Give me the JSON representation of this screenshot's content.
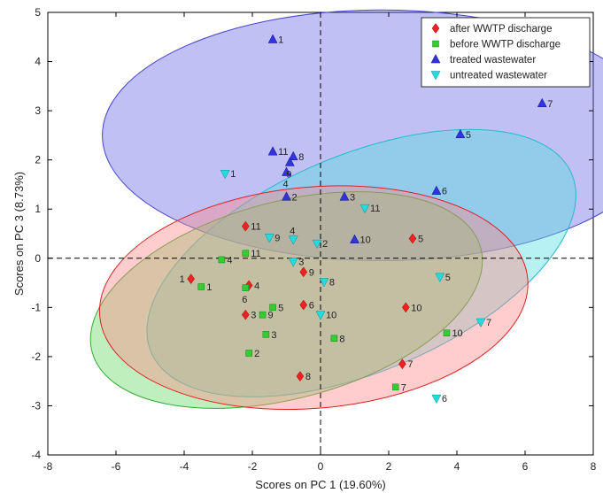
{
  "chart_data": {
    "type": "scatter",
    "xlabel": "Scores on PC 1 (19.60%)",
    "ylabel": "Scores on PC 3 (8.73%)",
    "xlim": [
      -8,
      8
    ],
    "ylim": [
      -4,
      5
    ],
    "xticks": [
      -8,
      -6,
      -4,
      -2,
      0,
      2,
      4,
      6,
      8
    ],
    "yticks": [
      -4,
      -3,
      -2,
      -1,
      0,
      1,
      2,
      3,
      4,
      5
    ],
    "reference_lines": {
      "x": 0,
      "y": 0,
      "style": "dashed"
    },
    "legend_position": "top-right",
    "series": [
      {
        "name": "after WWTP discharge",
        "marker": "diamond",
        "color": "#ee2222",
        "points": [
          {
            "x": -3.8,
            "y": -0.42,
            "label": "1",
            "lp": "left"
          },
          {
            "x": -2.2,
            "y": -1.15,
            "label": "3",
            "lp": "right"
          },
          {
            "x": -2.1,
            "y": -0.55,
            "label": "4",
            "lp": "right"
          },
          {
            "x": 2.7,
            "y": 0.4,
            "label": "5",
            "lp": "right"
          },
          {
            "x": -0.5,
            "y": -0.95,
            "label": "6",
            "lp": "right"
          },
          {
            "x": 2.4,
            "y": -2.15,
            "label": "7",
            "lp": "right"
          },
          {
            "x": -0.6,
            "y": -2.4,
            "label": "8",
            "lp": "right"
          },
          {
            "x": -0.5,
            "y": -0.28,
            "label": "9",
            "lp": "right"
          },
          {
            "x": 2.5,
            "y": -1.0,
            "label": "10",
            "lp": "right"
          },
          {
            "x": -2.2,
            "y": 0.65,
            "label": "11",
            "lp": "right"
          }
        ]
      },
      {
        "name": "before WWTP discharge",
        "marker": "square",
        "color": "#33cc33",
        "points": [
          {
            "x": -3.5,
            "y": -0.58,
            "label": "1",
            "lp": "right"
          },
          {
            "x": -2.1,
            "y": -1.93,
            "label": "2",
            "lp": "right"
          },
          {
            "x": -1.6,
            "y": -1.55,
            "label": "3",
            "lp": "right"
          },
          {
            "x": -2.9,
            "y": -0.03,
            "label": "4",
            "lp": "right"
          },
          {
            "x": -1.4,
            "y": -1.0,
            "label": "5",
            "lp": "right"
          },
          {
            "x": -2.2,
            "y": -0.6,
            "label": "6",
            "lp": "below"
          },
          {
            "x": 2.2,
            "y": -2.62,
            "label": "7",
            "lp": "right"
          },
          {
            "x": 0.4,
            "y": -1.63,
            "label": "8",
            "lp": "right"
          },
          {
            "x": -1.7,
            "y": -1.15,
            "label": "9",
            "lp": "right"
          },
          {
            "x": 3.7,
            "y": -1.52,
            "label": "10",
            "lp": "right"
          },
          {
            "x": -2.2,
            "y": 0.1,
            "label": "11",
            "lp": "right"
          }
        ]
      },
      {
        "name": "treated wastewater",
        "marker": "triangle-up",
        "color": "#3333dd",
        "points": [
          {
            "x": -1.4,
            "y": 4.45,
            "label": "1",
            "lp": "right"
          },
          {
            "x": -1.0,
            "y": 1.25,
            "label": "2",
            "lp": "right"
          },
          {
            "x": 0.7,
            "y": 1.25,
            "label": "3",
            "lp": "right"
          },
          {
            "x": -1.0,
            "y": 1.75,
            "label": "4",
            "lp": "below"
          },
          {
            "x": 4.1,
            "y": 2.52,
            "label": "5",
            "lp": "right"
          },
          {
            "x": 3.4,
            "y": 1.37,
            "label": "6",
            "lp": "right"
          },
          {
            "x": 6.5,
            "y": 3.15,
            "label": "7",
            "lp": "right"
          },
          {
            "x": -0.8,
            "y": 2.07,
            "label": "8",
            "lp": "right"
          },
          {
            "x": -0.9,
            "y": 1.95,
            "label": "9",
            "lp": "below"
          },
          {
            "x": 1.0,
            "y": 0.38,
            "label": "10",
            "lp": "right"
          },
          {
            "x": -1.4,
            "y": 2.17,
            "label": "11",
            "lp": "right"
          }
        ]
      },
      {
        "name": "untreated wastewater",
        "marker": "triangle-down",
        "color": "#22dddd",
        "points": [
          {
            "x": -2.8,
            "y": 1.72,
            "label": "1",
            "lp": "right"
          },
          {
            "x": -0.1,
            "y": 0.3,
            "label": "2",
            "lp": "right"
          },
          {
            "x": -0.8,
            "y": -0.07,
            "label": "3",
            "lp": "right"
          },
          {
            "x": -0.8,
            "y": 0.38,
            "label": "4",
            "lp": "above"
          },
          {
            "x": 3.5,
            "y": -0.38,
            "label": "5",
            "lp": "right"
          },
          {
            "x": 3.4,
            "y": -2.85,
            "label": "6",
            "lp": "right"
          },
          {
            "x": 4.7,
            "y": -1.3,
            "label": "7",
            "lp": "right"
          },
          {
            "x": 0.1,
            "y": -0.48,
            "label": "8",
            "lp": "right"
          },
          {
            "x": -1.5,
            "y": 0.42,
            "label": "9",
            "lp": "right"
          },
          {
            "x": 0.0,
            "y": -1.15,
            "label": "10",
            "lp": "right"
          },
          {
            "x": 1.3,
            "y": 1.02,
            "label": "11",
            "lp": "right"
          }
        ]
      }
    ],
    "confidence_ellipses": [
      {
        "series": "treated wastewater",
        "cx": 1.8,
        "cy": 2.5,
        "rx": 8.2,
        "ry": 2.55,
        "angle_deg": 0,
        "fill": "#6a6ae6",
        "stroke": "#4444cc"
      },
      {
        "series": "untreated wastewater",
        "cx": 1.2,
        "cy": -0.1,
        "rx": 6.7,
        "ry": 2.2,
        "angle_deg": -23,
        "fill": "#55dddd",
        "stroke": "#22bbcc"
      },
      {
        "series": "before WWTP discharge",
        "cx": -1.0,
        "cy": -0.85,
        "rx": 5.9,
        "ry": 2.0,
        "angle_deg": -15,
        "fill": "#66d966",
        "stroke": "#33aa33"
      },
      {
        "series": "after WWTP discharge",
        "cx": -0.2,
        "cy": -0.8,
        "rx": 6.3,
        "ry": 2.25,
        "angle_deg": -5,
        "fill": "#ff8888",
        "stroke": "#dd2222"
      }
    ]
  }
}
